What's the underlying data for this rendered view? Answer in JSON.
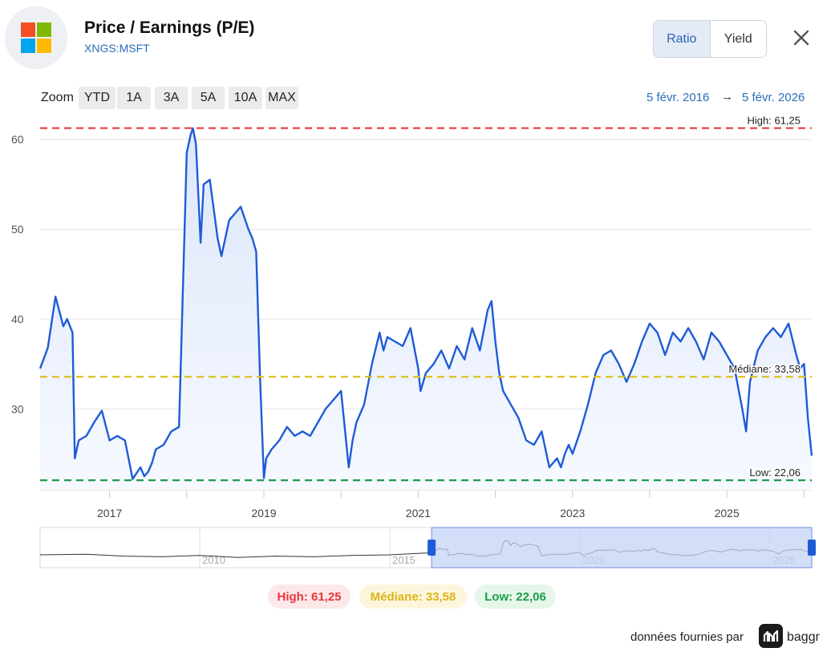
{
  "header": {
    "title": "Price / Earnings (P/E)",
    "ticker": "XNGS:MSFT",
    "logo_colors": [
      "#f25022",
      "#7fba00",
      "#00a4ef",
      "#ffb900"
    ]
  },
  "toggle": {
    "ratio_label": "Ratio",
    "yield_label": "Yield",
    "active": "Ratio"
  },
  "close_icon": "close-icon",
  "zoom": {
    "label": "Zoom",
    "buttons": [
      "YTD",
      "1A",
      "3A",
      "5A",
      "10A",
      "MAX"
    ]
  },
  "date_range": {
    "from": "5 févr. 2016",
    "arrow": "→",
    "to": "5 févr. 2026"
  },
  "summary": {
    "high": "High: 61,25",
    "median": "Médiane: 33,58",
    "low": "Low: 22,06"
  },
  "colors": {
    "line": "#1f5bd6",
    "high": "#e8383d",
    "median": "#e0c020",
    "low": "#1a9e4a",
    "navigator_fill": "#c4d3f5"
  },
  "footer": {
    "credit": "données fournies par",
    "brand": "baggr"
  },
  "chart_data": {
    "type": "area",
    "y_ticks": [
      "30",
      "40",
      "50",
      "60"
    ],
    "x_ticks": [
      "2017",
      "2019",
      "2021",
      "2023",
      "2025"
    ],
    "ylim": [
      21,
      63
    ],
    "xlim": [
      2016.1,
      2026.1
    ],
    "reference_lines": [
      {
        "name": "High",
        "label": "High: 61,25",
        "value": 61.25
      },
      {
        "name": "Médiane",
        "label": "Médiane: 33,58",
        "value": 33.58
      },
      {
        "name": "Low",
        "label": "Low: 22,06",
        "value": 22.06
      }
    ],
    "series": [
      {
        "x": [
          2016.1,
          2016.2,
          2016.3,
          2016.4,
          2016.45,
          2016.52,
          2016.55,
          2016.6,
          2016.7,
          2016.8,
          2016.9,
          2017.0,
          2017.1,
          2017.2,
          2017.3,
          2017.4,
          2017.45,
          2017.5,
          2017.55,
          2017.6,
          2017.7,
          2017.8,
          2017.9,
          2018.0,
          2018.05,
          2018.08,
          2018.12,
          2018.18,
          2018.22,
          2018.3,
          2018.4,
          2018.45,
          2018.55,
          2018.7,
          2018.8,
          2018.85,
          2018.9,
          2018.95,
          2019.0,
          2019.03,
          2019.1,
          2019.2,
          2019.3,
          2019.4,
          2019.5,
          2019.6,
          2019.7,
          2019.8,
          2019.9,
          2020.0,
          2020.1,
          2020.15,
          2020.2,
          2020.3,
          2020.4,
          2020.5,
          2020.55,
          2020.6,
          2020.7,
          2020.8,
          2020.9,
          2021.0,
          2021.03,
          2021.1,
          2021.2,
          2021.3,
          2021.4,
          2021.5,
          2021.6,
          2021.7,
          2021.8,
          2021.9,
          2021.95,
          2022.0,
          2022.05,
          2022.1,
          2022.2,
          2022.3,
          2022.4,
          2022.5,
          2022.6,
          2022.7,
          2022.8,
          2022.85,
          2022.9,
          2022.95,
          2023.0,
          2023.1,
          2023.2,
          2023.3,
          2023.4,
          2023.5,
          2023.6,
          2023.7,
          2023.8,
          2023.9,
          2024.0,
          2024.1,
          2024.2,
          2024.3,
          2024.4,
          2024.5,
          2024.6,
          2024.7,
          2024.8,
          2024.9,
          2025.0,
          2025.1,
          2025.2,
          2025.25,
          2025.3,
          2025.4,
          2025.5,
          2025.6,
          2025.7,
          2025.8,
          2025.9,
          2025.95,
          2026.0,
          2026.05,
          2026.1
        ],
        "y": [
          34.5,
          36.8,
          42.5,
          39.2,
          40.0,
          38.5,
          24.5,
          26.5,
          27.0,
          28.5,
          29.8,
          26.5,
          27.0,
          26.5,
          22.2,
          23.5,
          22.5,
          23.0,
          24.0,
          25.5,
          26.0,
          27.5,
          28.0,
          58.5,
          60.5,
          61.25,
          59.5,
          48.5,
          55.0,
          55.5,
          49.0,
          47.0,
          51.0,
          52.5,
          50.0,
          49.0,
          47.5,
          33.5,
          22.3,
          24.5,
          25.5,
          26.5,
          28.0,
          27.0,
          27.5,
          27.0,
          28.5,
          30.0,
          31.0,
          32.0,
          23.5,
          26.5,
          28.5,
          30.5,
          35.0,
          38.5,
          36.5,
          38.0,
          37.5,
          37.0,
          39.0,
          34.5,
          32.0,
          34.0,
          35.0,
          36.5,
          34.5,
          37.0,
          35.5,
          39.0,
          36.5,
          41.0,
          42.0,
          37.5,
          34.0,
          32.0,
          30.5,
          29.0,
          26.5,
          26.0,
          27.5,
          23.5,
          24.5,
          23.5,
          25.0,
          26.0,
          25.0,
          27.5,
          30.5,
          34.0,
          36.0,
          36.5,
          35.0,
          33.0,
          35.0,
          37.5,
          39.5,
          38.5,
          36.0,
          38.5,
          37.5,
          39.0,
          37.5,
          35.5,
          38.5,
          37.5,
          36.0,
          34.5,
          30.0,
          27.5,
          33.0,
          36.5,
          38.0,
          39.0,
          38.0,
          39.5,
          36.0,
          34.5,
          35.0,
          29.0,
          24.8
        ]
      }
    ],
    "navigator": {
      "x_ticks": [
        "2010",
        "2015",
        "2020",
        "2025"
      ],
      "selected_from": 2016.1,
      "selected_to": 2026.1
    }
  }
}
